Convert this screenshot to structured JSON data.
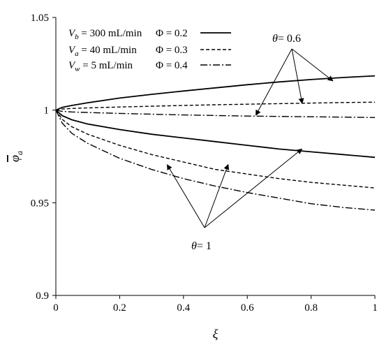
{
  "chart_data": {
    "type": "line",
    "xlabel": "ξ",
    "ylabel": "φ",
    "ylabel_subscript": "a",
    "xlim": [
      0,
      1
    ],
    "ylim": [
      0.9,
      1.05
    ],
    "x_ticks": [
      "0",
      "0.2",
      "0.4",
      "0.6",
      "0.8",
      "1"
    ],
    "y_ticks": [
      "0.9",
      "0.95",
      "1",
      "1.05"
    ],
    "grid": false,
    "conditions": [
      {
        "symbol": "V",
        "sub": "b",
        "text": " = 300 mL/min"
      },
      {
        "symbol": "V",
        "sub": "a",
        "text": " = 40 mL/min"
      },
      {
        "symbol": "V",
        "sub": "w",
        "text": " = 5 mL/min"
      }
    ],
    "legend": [
      {
        "label": "Φ = 0.2",
        "dash": "solid"
      },
      {
        "label": "Φ = 0.3",
        "dash": "dashed"
      },
      {
        "label": "Φ = 0.4",
        "dash": "dashdot"
      }
    ],
    "annotations": [
      {
        "prefix": "θ",
        "text": "= 0.6"
      },
      {
        "prefix": "θ",
        "text": "= 1"
      }
    ],
    "series": [
      {
        "legend_index": 0,
        "theta_group": 0,
        "x": [
          0,
          0.02,
          0.05,
          0.1,
          0.2,
          0.3,
          0.4,
          0.5,
          0.6,
          0.7,
          0.8,
          0.9,
          1.0
        ],
        "y": [
          1.0,
          1.0015,
          1.0025,
          1.004,
          1.0065,
          1.0085,
          1.0103,
          1.012,
          1.0137,
          1.0152,
          1.0165,
          1.0176,
          1.0185
        ]
      },
      {
        "legend_index": 1,
        "theta_group": 0,
        "x": [
          0,
          0.02,
          0.05,
          0.1,
          0.2,
          0.3,
          0.4,
          0.5,
          0.6,
          0.7,
          0.8,
          0.9,
          1.0
        ],
        "y": [
          1.0,
          1.0006,
          1.0009,
          1.0012,
          1.0017,
          1.0021,
          1.0025,
          1.0029,
          1.0032,
          1.0035,
          1.0038,
          1.0041,
          1.0043
        ]
      },
      {
        "legend_index": 2,
        "theta_group": 0,
        "x": [
          0,
          0.02,
          0.05,
          0.1,
          0.2,
          0.3,
          0.4,
          0.5,
          0.6,
          0.7,
          0.8,
          0.9,
          1.0
        ],
        "y": [
          1.0,
          0.9993,
          0.999,
          0.9987,
          0.9982,
          0.9978,
          0.9974,
          0.9971,
          0.9968,
          0.9966,
          0.9964,
          0.9962,
          0.996
        ]
      },
      {
        "legend_index": 0,
        "theta_group": 1,
        "x": [
          0,
          0.02,
          0.05,
          0.1,
          0.2,
          0.3,
          0.4,
          0.5,
          0.6,
          0.7,
          0.8,
          0.9,
          1.0
        ],
        "y": [
          1.0,
          0.997,
          0.9948,
          0.9925,
          0.9895,
          0.987,
          0.985,
          0.983,
          0.981,
          0.979,
          0.9775,
          0.976,
          0.9745
        ]
      },
      {
        "legend_index": 1,
        "theta_group": 1,
        "x": [
          0,
          0.02,
          0.05,
          0.1,
          0.2,
          0.3,
          0.4,
          0.5,
          0.6,
          0.7,
          0.8,
          0.9,
          1.0
        ],
        "y": [
          1.0,
          0.995,
          0.991,
          0.987,
          0.981,
          0.976,
          0.972,
          0.968,
          0.9655,
          0.963,
          0.961,
          0.9595,
          0.958
        ]
      },
      {
        "legend_index": 2,
        "theta_group": 1,
        "x": [
          0,
          0.02,
          0.05,
          0.1,
          0.2,
          0.3,
          0.4,
          0.5,
          0.6,
          0.7,
          0.8,
          0.9,
          1.0
        ],
        "y": [
          1.0,
          0.993,
          0.9875,
          0.982,
          0.974,
          0.968,
          0.963,
          0.959,
          0.9555,
          0.9525,
          0.9495,
          0.9475,
          0.946
        ]
      }
    ],
    "arrow_targets": [
      {
        "group": 0,
        "x": 0.868,
        "y": 1.0158
      },
      {
        "group": 0,
        "x": 0.772,
        "y": 1.0037
      },
      {
        "group": 0,
        "x": 0.627,
        "y": 0.9973
      },
      {
        "group": 1,
        "x": 0.349,
        "y": 0.9705
      },
      {
        "group": 1,
        "x": 0.54,
        "y": 0.9706
      },
      {
        "group": 1,
        "x": 0.771,
        "y": 0.979
      }
    ],
    "colors": {
      "line": "#000000",
      "background": "#ffffff"
    }
  }
}
